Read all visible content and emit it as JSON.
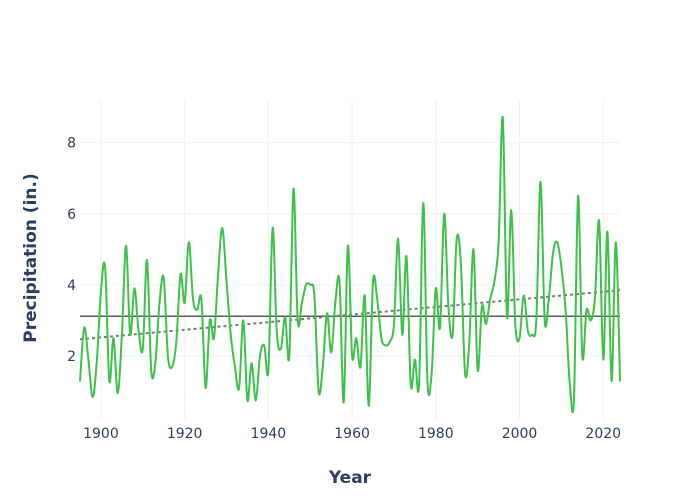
{
  "chart_data": {
    "type": "line",
    "xlabel": "Year",
    "ylabel": "Precipitation (in.)",
    "xlim": [
      1895,
      2024
    ],
    "ylim": [
      0.2,
      9.2
    ],
    "x_ticks": [
      1900,
      1920,
      1940,
      1960,
      1980,
      2000,
      2020
    ],
    "y_ticks": [
      2,
      4,
      6,
      8
    ],
    "grid": true,
    "legend": "none",
    "colors": {
      "series": "#3ec14b",
      "mean": "#222222",
      "trend": "#777777",
      "grid": "#eef0f4"
    },
    "series": [
      {
        "x": [
          1895,
          1896,
          1897,
          1898,
          1899,
          1900,
          1901,
          1902,
          1903,
          1904,
          1905,
          1906,
          1907,
          1908,
          1909,
          1910,
          1911,
          1912,
          1913,
          1914,
          1915,
          1916,
          1917,
          1918,
          1919,
          1920,
          1921,
          1922,
          1923,
          1924,
          1925,
          1926,
          1927,
          1928,
          1929,
          1930,
          1931,
          1932,
          1933,
          1934,
          1935,
          1936,
          1937,
          1938,
          1939,
          1940,
          1941,
          1942,
          1943,
          1944,
          1945,
          1946,
          1947,
          1948,
          1949,
          1950,
          1951,
          1952,
          1953,
          1954,
          1955,
          1956,
          1957,
          1958,
          1959,
          1960,
          1961,
          1962,
          1963,
          1964,
          1965,
          1966,
          1967,
          1968,
          1969,
          1970,
          1971,
          1972,
          1973,
          1974,
          1975,
          1976,
          1977,
          1978,
          1979,
          1980,
          1981,
          1982,
          1983,
          1984,
          1985,
          1986,
          1987,
          1988,
          1989,
          1990,
          1991,
          1992,
          1993,
          1994,
          1995,
          1996,
          1997,
          1998,
          1999,
          2000,
          2001,
          2002,
          2003,
          2004,
          2005,
          2006,
          2007,
          2008,
          2009,
          2010,
          2011,
          2012,
          2013,
          2014,
          2015,
          2016,
          2017,
          2018,
          2019,
          2020,
          2021,
          2022,
          2023,
          2024
        ],
        "values": [
          1.3,
          2.8,
          1.9,
          0.85,
          1.8,
          3.8,
          4.5,
          1.3,
          2.5,
          0.95,
          2.6,
          5.1,
          2.6,
          3.9,
          2.7,
          2.2,
          4.7,
          1.6,
          1.8,
          3.5,
          4.2,
          2.0,
          1.7,
          2.4,
          4.3,
          3.5,
          5.2,
          3.6,
          3.3,
          3.6,
          1.1,
          3.0,
          2.5,
          4.3,
          5.6,
          4.1,
          2.6,
          1.7,
          1.1,
          3.0,
          0.75,
          1.8,
          0.75,
          2.0,
          2.3,
          1.6,
          5.6,
          2.7,
          2.2,
          3.1,
          2.0,
          6.7,
          3.0,
          3.5,
          4.0,
          4.0,
          3.7,
          1.0,
          1.7,
          3.2,
          2.1,
          3.5,
          4.1,
          0.7,
          5.1,
          2.0,
          2.5,
          1.7,
          3.7,
          0.6,
          4.1,
          3.6,
          2.5,
          2.3,
          2.4,
          2.9,
          5.3,
          2.6,
          4.8,
          1.2,
          1.9,
          1.2,
          6.3,
          1.3,
          1.5,
          3.9,
          2.8,
          6.0,
          3.4,
          2.6,
          5.3,
          4.6,
          1.5,
          2.4,
          5.0,
          1.6,
          3.4,
          2.9,
          3.6,
          4.1,
          5.2,
          8.7,
          3.1,
          6.1,
          2.9,
          2.5,
          3.7,
          2.7,
          2.6,
          3.0,
          6.9,
          3.0,
          3.6,
          4.9,
          5.2,
          4.5,
          3.3,
          1.2,
          0.8,
          6.5,
          2.0,
          3.3,
          3.0,
          3.6,
          5.8,
          1.9,
          5.5,
          1.3,
          5.2,
          1.3
        ]
      }
    ],
    "mean": 3.12,
    "trend": {
      "start": 2.47,
      "end": 3.85
    }
  }
}
